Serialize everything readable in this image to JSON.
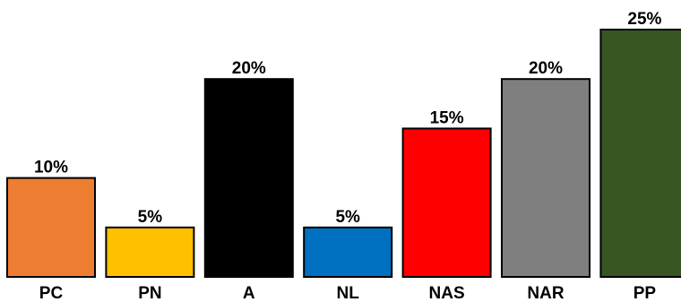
{
  "chart_data": {
    "type": "bar",
    "title": "",
    "xlabel": "",
    "ylabel": "",
    "categories": [
      "PC",
      "PN",
      "A",
      "NL",
      "NAS",
      "NAR",
      "PP"
    ],
    "values": [
      10,
      5,
      20,
      5,
      15,
      20,
      25
    ],
    "value_labels": [
      "10%",
      "5%",
      "20%",
      "5%",
      "15%",
      "20%",
      "25%"
    ],
    "colors": [
      "#ED7D31",
      "#FFC000",
      "#000000",
      "#0070C0",
      "#FF0000",
      "#7F7F7F",
      "#375623"
    ],
    "ylim": [
      0,
      25
    ],
    "grid": false,
    "legend": "none",
    "axes_visible": false
  }
}
